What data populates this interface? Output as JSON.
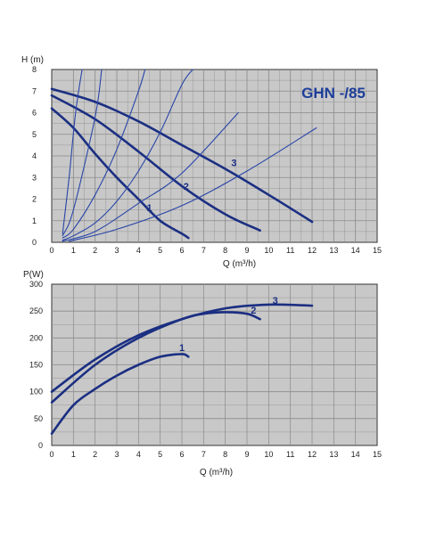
{
  "colors": {
    "plot_background": "#c8c8c8",
    "grid": "#8a8a8a",
    "pump_curve": "#1b2f82",
    "system_curve": "#2845a8",
    "title": "#1e3e9a",
    "border": "#333333"
  },
  "chart_data": [
    {
      "type": "line",
      "title": "GHN -/85",
      "xlabel": "Q (m³/h)",
      "ylabel": "H (m)",
      "xlim": [
        0,
        15
      ],
      "ylim": [
        0,
        8
      ],
      "xticks": [
        "0",
        "1",
        "2",
        "3",
        "4",
        "5",
        "6",
        "7",
        "8",
        "9",
        "10",
        "11",
        "12",
        "13",
        "14",
        "15"
      ],
      "yticks": [
        "0",
        "1",
        "2",
        "3",
        "4",
        "5",
        "6",
        "7",
        "8"
      ],
      "grid": true,
      "series": [
        {
          "name": "1",
          "kind": "pump",
          "x": [
            0,
            1,
            2,
            3,
            4,
            5,
            6,
            6.3
          ],
          "y": [
            6.2,
            5.3,
            4.1,
            3.0,
            2.0,
            1.0,
            0.4,
            0.2
          ]
        },
        {
          "name": "2",
          "kind": "pump",
          "x": [
            0,
            2,
            4,
            6,
            8,
            9.6
          ],
          "y": [
            6.8,
            5.7,
            4.2,
            2.6,
            1.3,
            0.55
          ]
        },
        {
          "name": "3",
          "kind": "pump",
          "x": [
            0,
            2,
            4,
            6,
            8,
            10,
            12
          ],
          "y": [
            7.1,
            6.5,
            5.6,
            4.5,
            3.4,
            2.2,
            0.95
          ]
        },
        {
          "name": "",
          "kind": "system",
          "x": [
            0.5,
            1,
            2,
            3,
            4,
            5,
            6,
            6.5
          ],
          "y": [
            0.1,
            0.3,
            0.9,
            1.9,
            3.3,
            5.1,
            7.3,
            8.0
          ]
        },
        {
          "name": "",
          "kind": "system",
          "x": [
            0.5,
            1,
            2,
            3,
            4,
            4.3
          ],
          "y": [
            0.2,
            0.6,
            2.2,
            4.3,
            7.0,
            8.0
          ]
        },
        {
          "name": "",
          "kind": "system",
          "x": [
            0.5,
            1,
            2,
            2.3
          ],
          "y": [
            0.3,
            1.5,
            5.8,
            8.0
          ]
        },
        {
          "name": "",
          "kind": "system",
          "x": [
            0.5,
            2,
            4,
            6,
            8.6
          ],
          "y": [
            0.05,
            0.5,
            1.8,
            3.2,
            6.0
          ]
        },
        {
          "name": "",
          "kind": "system",
          "x": [
            0.8,
            3,
            6,
            9,
            12.2
          ],
          "y": [
            0.05,
            0.6,
            1.7,
            3.3,
            5.3
          ]
        },
        {
          "name": "",
          "kind": "system",
          "x": [
            0.5,
            0.8,
            1.1,
            1.4
          ],
          "y": [
            0.4,
            3.0,
            6.0,
            8.0
          ]
        }
      ],
      "labels": [
        {
          "text": "1",
          "x": 4.5,
          "y": 1.6
        },
        {
          "text": "2",
          "x": 6.2,
          "y": 2.6
        },
        {
          "text": "3",
          "x": 8.4,
          "y": 3.7
        }
      ]
    },
    {
      "type": "line",
      "title": "",
      "xlabel": "Q (m³/h)",
      "ylabel": "P(W)",
      "xlim": [
        0,
        15
      ],
      "ylim": [
        0,
        300
      ],
      "xticks": [
        "0",
        "2",
        "4",
        "6",
        "8",
        "10",
        "12",
        "14"
      ],
      "xtick_values": [
        0,
        2,
        4,
        6,
        8,
        10,
        12,
        14
      ],
      "xtick_minor_values": [
        1,
        3,
        5,
        7,
        9,
        11,
        13,
        15
      ],
      "xtick_minor_labels": [
        "1",
        "3",
        "5",
        "7",
        "9",
        "11",
        "13",
        "15"
      ],
      "yticks": [
        "0",
        "50",
        "100",
        "150",
        "200",
        "250",
        "300"
      ],
      "grid": true,
      "series": [
        {
          "name": "1",
          "x": [
            0,
            1,
            2,
            3,
            4,
            5,
            6,
            6.3
          ],
          "y": [
            22,
            75,
            105,
            130,
            150,
            165,
            170,
            165
          ]
        },
        {
          "name": "2",
          "x": [
            0,
            2,
            4,
            6,
            7,
            8,
            9,
            9.6
          ],
          "y": [
            80,
            150,
            200,
            235,
            245,
            248,
            245,
            235
          ]
        },
        {
          "name": "3",
          "x": [
            0,
            2,
            4,
            6,
            8,
            10,
            12
          ],
          "y": [
            100,
            160,
            205,
            235,
            255,
            262,
            260
          ]
        }
      ],
      "labels": [
        {
          "text": "1",
          "x": 6.0,
          "y": 182
        },
        {
          "text": "2",
          "x": 9.3,
          "y": 252
        },
        {
          "text": "3",
          "x": 10.3,
          "y": 270
        }
      ]
    }
  ]
}
